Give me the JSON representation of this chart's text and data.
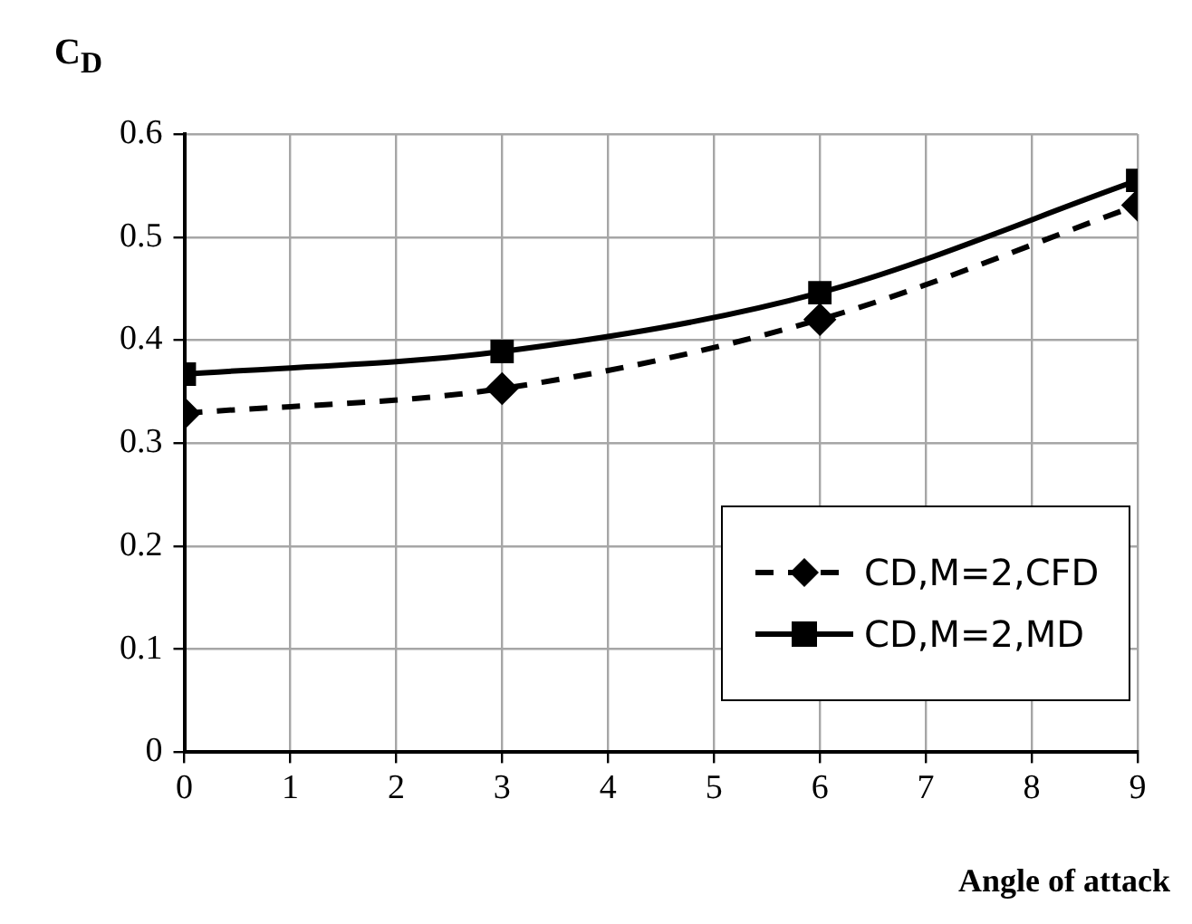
{
  "chart_data": {
    "type": "line",
    "xlabel": "Angle of attack",
    "ylabel": "C$_{D}$",
    "x": [
      0,
      3,
      6,
      9
    ],
    "xlim": [
      0,
      9
    ],
    "xticks": [
      0,
      1,
      2,
      3,
      4,
      5,
      6,
      7,
      8,
      9
    ],
    "ylim": [
      0,
      0.6
    ],
    "yticks": [
      0,
      0.1,
      0.2,
      0.3,
      0.4,
      0.5,
      0.6
    ],
    "grid": true,
    "legend": "bottom right",
    "series": [
      {
        "name": "CD,M=2,CFD",
        "color": "#000000",
        "values": [
          0.329,
          0.353,
          0.42,
          0.531
        ],
        "marker": "diamond",
        "line_style": "dashed"
      },
      {
        "name": "CD,M=2,MD",
        "color": "#000000",
        "values": [
          0.367,
          0.389,
          0.446,
          0.555
        ],
        "marker": "square",
        "line_style": "solid"
      }
    ]
  }
}
